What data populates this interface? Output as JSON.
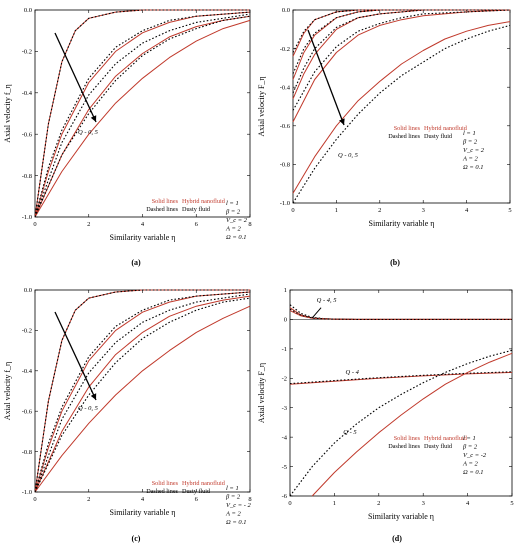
{
  "chart_data": [
    {
      "panel_label": "(a)",
      "type": "line",
      "xlabel": "Similarity variable η",
      "ylabel": "Axial velocity f_η",
      "xlim": [
        0,
        8
      ],
      "ylim": [
        -1.0,
        0.0
      ],
      "xticks": [
        "0",
        "2",
        "4",
        "6",
        "8"
      ],
      "yticks": [
        "0.0",
        "-0.2",
        "-0.4",
        "-0.6",
        "-0.8",
        "-1.0"
      ],
      "grid": false,
      "annotation": "Q - 0, 5",
      "legend": {
        "solid_label": "Solid lines",
        "solid_desc": "Hybrid nanofluid",
        "dashed_label": "Dashed lines",
        "dashed_desc": "Dusty fluid"
      },
      "params": [
        "l = 1",
        "β = 2",
        "V_c = 2",
        "A = 2",
        "Ω = 0.1"
      ],
      "series": [
        {
          "style": "solid",
          "color": "#c0392b",
          "x": [
            0,
            0.5,
            1,
            1.5,
            2,
            3,
            4,
            5,
            6,
            8
          ],
          "y": [
            -1.0,
            -0.55,
            -0.25,
            -0.1,
            -0.04,
            -0.01,
            0,
            0,
            0,
            0
          ]
        },
        {
          "style": "dashed",
          "color": "#000000",
          "x": [
            0,
            0.5,
            1,
            1.5,
            2,
            3,
            4,
            5,
            6,
            8
          ],
          "y": [
            -1.0,
            -0.55,
            -0.25,
            -0.1,
            -0.04,
            -0.01,
            0,
            0,
            0,
            0
          ]
        },
        {
          "style": "solid",
          "color": "#c0392b",
          "x": [
            0,
            0.5,
            1,
            2,
            3,
            4,
            5,
            6,
            8
          ],
          "y": [
            -1.0,
            -0.78,
            -0.6,
            -0.35,
            -0.2,
            -0.11,
            -0.06,
            -0.03,
            -0.01
          ]
        },
        {
          "style": "dashed",
          "color": "#000000",
          "x": [
            0,
            0.5,
            1,
            2,
            3,
            4,
            5,
            6,
            8
          ],
          "y": [
            -1.0,
            -0.76,
            -0.58,
            -0.33,
            -0.18,
            -0.1,
            -0.05,
            -0.03,
            -0.01
          ]
        },
        {
          "style": "solid",
          "color": "#c0392b",
          "x": [
            0,
            1,
            2,
            3,
            4,
            5,
            6,
            7,
            8
          ],
          "y": [
            -1.0,
            -0.7,
            -0.48,
            -0.32,
            -0.21,
            -0.13,
            -0.08,
            -0.05,
            -0.03
          ]
        },
        {
          "style": "dashed",
          "color": "#000000",
          "x": [
            0,
            1,
            2,
            3,
            4,
            5,
            6,
            7,
            8
          ],
          "y": [
            -1.0,
            -0.64,
            -0.41,
            -0.26,
            -0.16,
            -0.1,
            -0.06,
            -0.04,
            -0.02
          ]
        },
        {
          "style": "solid",
          "color": "#c0392b",
          "x": [
            0,
            1,
            2,
            3,
            4,
            5,
            6,
            7,
            8
          ],
          "y": [
            -1.0,
            -0.78,
            -0.6,
            -0.45,
            -0.33,
            -0.23,
            -0.15,
            -0.09,
            -0.05
          ]
        },
        {
          "style": "dashed",
          "color": "#000000",
          "x": [
            0,
            1,
            2,
            3,
            4,
            5,
            6,
            7,
            8
          ],
          "y": [
            -1.0,
            -0.7,
            -0.5,
            -0.34,
            -0.22,
            -0.14,
            -0.09,
            -0.05,
            -0.03
          ]
        }
      ]
    },
    {
      "panel_label": "(b)",
      "type": "line",
      "xlabel": "Similarity variable η",
      "ylabel": "Axial velocity F_η",
      "xlim": [
        0,
        5
      ],
      "ylim": [
        -1.0,
        0.0
      ],
      "xticks": [
        "0",
        "1",
        "2",
        "3",
        "4",
        "5"
      ],
      "yticks": [
        "0.0",
        "-0.2",
        "-0.4",
        "-0.6",
        "-0.8",
        "-1.0"
      ],
      "grid": false,
      "annotation": "Q - 0, 5",
      "legend": {
        "solid_label": "Solid lines",
        "solid_desc": "Hybrid nanofluid",
        "dashed_label": "Dashed lines",
        "dashed_desc": "Dusty fluid"
      },
      "params": [
        "l = 1",
        "β = 2",
        "V_c = 2",
        "A = 2",
        "Ω = 0.1"
      ],
      "series": [
        {
          "style": "solid",
          "color": "#c0392b",
          "x": [
            0,
            0.25,
            0.5,
            1,
            1.5,
            2,
            3,
            5
          ],
          "y": [
            -0.24,
            -0.12,
            -0.05,
            -0.01,
            0,
            0,
            0,
            0
          ]
        },
        {
          "style": "dashed",
          "color": "#000000",
          "x": [
            0,
            0.25,
            0.5,
            1,
            1.5,
            2,
            3,
            5
          ],
          "y": [
            -0.22,
            -0.11,
            -0.05,
            -0.01,
            0,
            0,
            0,
            0
          ]
        },
        {
          "style": "solid",
          "color": "#c0392b",
          "x": [
            0,
            0.25,
            0.5,
            1,
            1.5,
            2,
            3,
            5
          ],
          "y": [
            -0.36,
            -0.22,
            -0.13,
            -0.04,
            -0.01,
            0,
            0,
            0
          ]
        },
        {
          "style": "dashed",
          "color": "#000000",
          "x": [
            0,
            0.25,
            0.5,
            1,
            1.5,
            2,
            3,
            5
          ],
          "y": [
            -0.33,
            -0.2,
            -0.12,
            -0.04,
            -0.01,
            0,
            0,
            0
          ]
        },
        {
          "style": "solid",
          "color": "#c0392b",
          "x": [
            0,
            0.25,
            0.5,
            1,
            1.5,
            2,
            3,
            5
          ],
          "y": [
            -0.46,
            -0.33,
            -0.23,
            -0.1,
            -0.04,
            -0.02,
            0,
            0
          ]
        },
        {
          "style": "dashed",
          "color": "#000000",
          "x": [
            0,
            0.25,
            0.5,
            1,
            1.5,
            2,
            3,
            5
          ],
          "y": [
            -0.43,
            -0.3,
            -0.2,
            -0.09,
            -0.04,
            -0.02,
            0,
            0
          ]
        },
        {
          "style": "solid",
          "color": "#c0392b",
          "x": [
            0,
            0.5,
            1,
            1.5,
            2,
            2.5,
            3,
            4,
            5
          ],
          "y": [
            -0.58,
            -0.36,
            -0.22,
            -0.13,
            -0.08,
            -0.05,
            -0.03,
            -0.01,
            0
          ]
        },
        {
          "style": "dashed",
          "color": "#000000",
          "x": [
            0,
            0.5,
            1,
            1.5,
            2,
            2.5,
            3,
            4,
            5
          ],
          "y": [
            -0.52,
            -0.32,
            -0.19,
            -0.11,
            -0.07,
            -0.04,
            -0.02,
            -0.01,
            0
          ]
        },
        {
          "style": "solid",
          "color": "#c0392b",
          "x": [
            0,
            0.5,
            1,
            1.5,
            2,
            2.5,
            3,
            3.5,
            4,
            4.5,
            5
          ],
          "y": [
            -0.95,
            -0.76,
            -0.6,
            -0.47,
            -0.37,
            -0.28,
            -0.21,
            -0.15,
            -0.11,
            -0.08,
            -0.06
          ]
        },
        {
          "style": "dashed",
          "color": "#000000",
          "x": [
            0,
            0.5,
            1,
            1.5,
            2,
            2.5,
            3,
            3.5,
            4,
            4.5,
            5
          ],
          "y": [
            -1.0,
            -0.82,
            -0.67,
            -0.54,
            -0.43,
            -0.34,
            -0.27,
            -0.2,
            -0.15,
            -0.11,
            -0.08
          ]
        }
      ]
    },
    {
      "panel_label": "(c)",
      "type": "line",
      "xlabel": "Similarity variable η",
      "ylabel": "Axial velocity f_η",
      "xlim": [
        0,
        8
      ],
      "ylim": [
        -1.0,
        0.0
      ],
      "xticks": [
        "0",
        "2",
        "4",
        "6",
        "8"
      ],
      "yticks": [
        "0.0",
        "-0.2",
        "-0.4",
        "-0.6",
        "-0.8",
        "-1.0"
      ],
      "grid": false,
      "annotation": "Q - 0, 5",
      "legend": {
        "solid_label": "Solid lines",
        "solid_desc": "Hybrid nanofluid",
        "dashed_label": "Dashed lines",
        "dashed_desc": "Dusty fluid"
      },
      "params": [
        "l = 1",
        "β = 2",
        "V_c = - 2",
        "A = 2",
        "Ω = 0.1"
      ],
      "series": [
        {
          "style": "solid",
          "color": "#c0392b",
          "x": [
            0,
            0.5,
            1,
            1.5,
            2,
            3,
            4,
            5,
            6,
            8
          ],
          "y": [
            -1.0,
            -0.55,
            -0.25,
            -0.1,
            -0.04,
            -0.01,
            0,
            0,
            0,
            0
          ]
        },
        {
          "style": "dashed",
          "color": "#000000",
          "x": [
            0,
            0.5,
            1,
            1.5,
            2,
            3,
            4,
            5,
            6,
            8
          ],
          "y": [
            -1.0,
            -0.55,
            -0.25,
            -0.1,
            -0.04,
            -0.01,
            0,
            0,
            0,
            0
          ]
        },
        {
          "style": "solid",
          "color": "#c0392b",
          "x": [
            0,
            0.5,
            1,
            2,
            3,
            4,
            5,
            6,
            8
          ],
          "y": [
            -1.0,
            -0.78,
            -0.6,
            -0.35,
            -0.2,
            -0.11,
            -0.06,
            -0.03,
            -0.01
          ]
        },
        {
          "style": "dashed",
          "color": "#000000",
          "x": [
            0,
            0.5,
            1,
            2,
            3,
            4,
            5,
            6,
            8
          ],
          "y": [
            -1.0,
            -0.76,
            -0.58,
            -0.33,
            -0.18,
            -0.1,
            -0.05,
            -0.03,
            -0.01
          ]
        },
        {
          "style": "solid",
          "color": "#c0392b",
          "x": [
            0,
            1,
            2,
            3,
            4,
            5,
            6,
            7,
            8
          ],
          "y": [
            -1.0,
            -0.7,
            -0.48,
            -0.32,
            -0.21,
            -0.13,
            -0.08,
            -0.05,
            -0.03
          ]
        },
        {
          "style": "dashed",
          "color": "#000000",
          "x": [
            0,
            1,
            2,
            3,
            4,
            5,
            6,
            7,
            8
          ],
          "y": [
            -1.0,
            -0.64,
            -0.41,
            -0.26,
            -0.16,
            -0.1,
            -0.06,
            -0.04,
            -0.02
          ]
        },
        {
          "style": "solid",
          "color": "#c0392b",
          "x": [
            0,
            1,
            2,
            3,
            4,
            5,
            6,
            7,
            8
          ],
          "y": [
            -1.0,
            -0.82,
            -0.66,
            -0.52,
            -0.4,
            -0.3,
            -0.21,
            -0.14,
            -0.08
          ]
        },
        {
          "style": "dashed",
          "color": "#000000",
          "x": [
            0,
            1,
            2,
            3,
            4,
            5,
            6,
            7,
            8
          ],
          "y": [
            -1.0,
            -0.72,
            -0.52,
            -0.36,
            -0.24,
            -0.16,
            -0.1,
            -0.06,
            -0.04
          ]
        }
      ]
    },
    {
      "panel_label": "(d)",
      "type": "line",
      "xlabel": "Similarity variable η",
      "ylabel": "Axial velocity F_η",
      "xlim": [
        0,
        5
      ],
      "ylim": [
        -6,
        1
      ],
      "xticks": [
        "0",
        "1",
        "2",
        "3",
        "4",
        "5"
      ],
      "yticks": [
        "1",
        "0",
        "-1",
        "-2",
        "-3",
        "-4",
        "-5",
        "-6"
      ],
      "grid": false,
      "annotations": [
        "Q - 4, 5",
        "Q - 4",
        "Q - 5"
      ],
      "legend": {
        "solid_label": "Solid lines",
        "solid_desc": "Hybrid nanofluid",
        "dashed_label": "Dashed lines",
        "dashed_desc": "Dusty fluid"
      },
      "params": [
        "l = 1",
        "β = 2",
        "V_c = -2",
        "A = 2",
        "Ω = 0.1"
      ],
      "series": [
        {
          "style": "solid",
          "color": "#c0392b",
          "x": [
            0,
            0.25,
            0.5,
            0.75,
            1,
            1.5,
            2,
            3,
            5
          ],
          "y": [
            0.4,
            0.15,
            0.05,
            0.02,
            0.01,
            0,
            0,
            0,
            0
          ]
        },
        {
          "style": "dashed",
          "color": "#000000",
          "x": [
            0,
            0.25,
            0.5,
            0.75,
            1,
            1.5,
            2,
            3,
            5
          ],
          "y": [
            0.5,
            0.2,
            0.07,
            0.03,
            0.01,
            0,
            0,
            0,
            0
          ]
        },
        {
          "style": "solid",
          "color": "#c0392b",
          "x": [
            0,
            0.25,
            0.5,
            0.75,
            1,
            1.5,
            2,
            3,
            5
          ],
          "y": [
            0.3,
            0.12,
            0.04,
            0.02,
            0.01,
            0,
            0,
            0,
            0
          ]
        },
        {
          "style": "dashed",
          "color": "#000000",
          "x": [
            0,
            0.25,
            0.5,
            0.75,
            1,
            1.5,
            2,
            3,
            5
          ],
          "y": [
            0.35,
            0.14,
            0.05,
            0.02,
            0.01,
            0,
            0,
            0,
            0
          ]
        },
        {
          "style": "solid",
          "color": "#c0392b",
          "x": [
            0,
            1,
            2,
            3,
            4,
            5
          ],
          "y": [
            -2.2,
            -2.1,
            -2.0,
            -1.92,
            -1.85,
            -1.8
          ]
        },
        {
          "style": "dashed",
          "color": "#000000",
          "x": [
            0,
            1,
            2,
            3,
            4,
            5
          ],
          "y": [
            -2.18,
            -2.08,
            -1.98,
            -1.9,
            -1.83,
            -1.78
          ]
        },
        {
          "style": "solid",
          "color": "#c0392b",
          "x": [
            0.5,
            1,
            1.5,
            2,
            2.5,
            3,
            3.5,
            4,
            4.5,
            5
          ],
          "y": [
            -6.0,
            -5.2,
            -4.5,
            -3.85,
            -3.25,
            -2.7,
            -2.2,
            -1.8,
            -1.45,
            -1.15
          ]
        },
        {
          "style": "dashed",
          "color": "#000000",
          "x": [
            0,
            0.5,
            1,
            1.5,
            2,
            2.5,
            3,
            3.5,
            4,
            4.5,
            5
          ],
          "y": [
            -6.0,
            -5.0,
            -4.2,
            -3.55,
            -3.0,
            -2.55,
            -2.15,
            -1.8,
            -1.5,
            -1.25,
            -1.05
          ]
        }
      ]
    }
  ]
}
